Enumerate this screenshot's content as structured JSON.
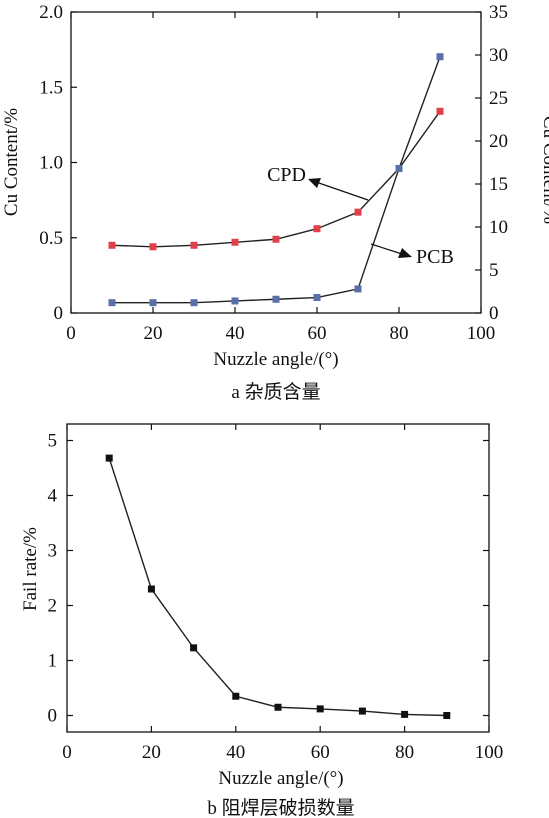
{
  "chart_data": [
    {
      "type": "line",
      "caption": "a 杂质含量",
      "xlabel": "Nuzzle angle/(°)",
      "ylabel_left": "Cu Content/%",
      "ylabel_right": "Cu Content/%",
      "xlim": [
        0,
        100
      ],
      "ylim_left": [
        0,
        2.0
      ],
      "ylim_right": [
        0,
        35
      ],
      "x_ticks": [
        "0",
        "20",
        "40",
        "60",
        "80",
        "100"
      ],
      "y_left_ticks": [
        "0",
        "0.5",
        "1.0",
        "1.5",
        "2.0"
      ],
      "y_right_ticks": [
        "0",
        "5",
        "10",
        "15",
        "20",
        "25",
        "30",
        "35"
      ],
      "series": [
        {
          "name": "CPD",
          "axis": "left",
          "color": "#e0404a",
          "x": [
            10,
            20,
            30,
            40,
            50,
            60,
            70,
            80,
            90
          ],
          "y": [
            0.45,
            0.44,
            0.45,
            0.47,
            0.49,
            0.56,
            0.67,
            0.96,
            1.34
          ]
        },
        {
          "name": "PCB",
          "axis": "right",
          "color": "#5a6ea8",
          "x": [
            10,
            20,
            30,
            40,
            50,
            60,
            70,
            80,
            90
          ],
          "y": [
            1.2,
            1.2,
            1.2,
            1.4,
            1.6,
            1.8,
            2.8,
            16.8,
            29.8
          ]
        }
      ]
    },
    {
      "type": "line",
      "caption": "b 阻焊层破损数量",
      "xlabel": "Nuzzle angle/(°)",
      "ylabel": "Fail rate/%",
      "xlim": [
        0,
        100
      ],
      "ylim": [
        -0.3,
        5.3
      ],
      "x_ticks": [
        "0",
        "20",
        "40",
        "60",
        "80",
        "100"
      ],
      "y_ticks": [
        "0",
        "1",
        "2",
        "3",
        "4",
        "5"
      ],
      "series": [
        {
          "color": "#111111",
          "x": [
            10,
            20,
            30,
            40,
            50,
            60,
            70,
            80,
            90
          ],
          "y": [
            4.68,
            2.3,
            1.23,
            0.35,
            0.15,
            0.12,
            0.08,
            0.02,
            0.0
          ]
        }
      ]
    }
  ]
}
